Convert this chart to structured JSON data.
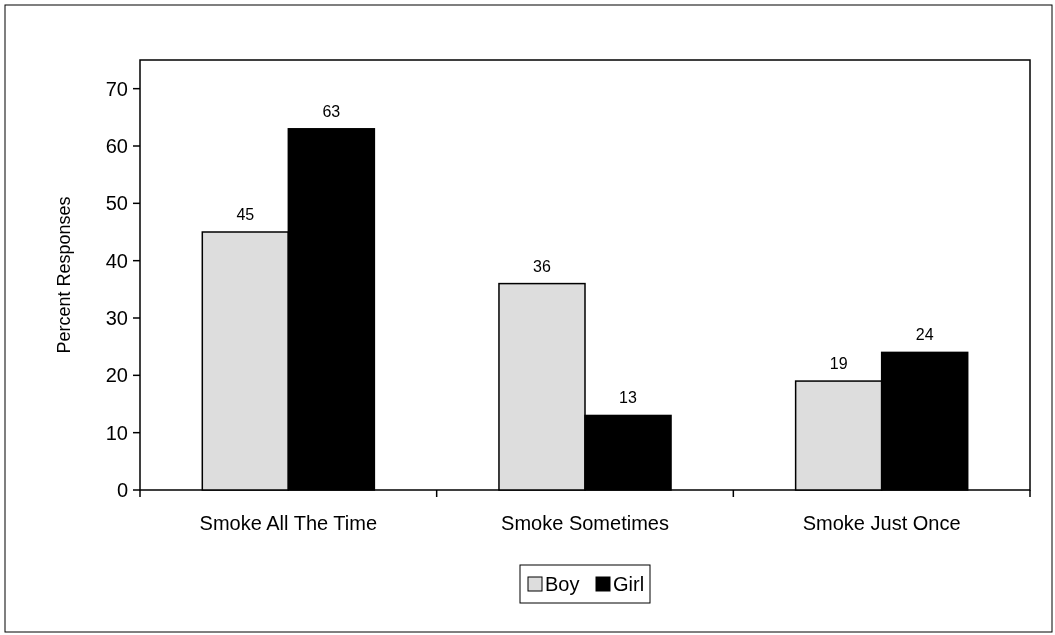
{
  "chart_data": {
    "type": "bar",
    "ylabel": "Percent Responses",
    "categories": [
      "Smoke All The Time",
      "Smoke Sometimes",
      "Smoke Just Once"
    ],
    "series": [
      {
        "name": "Boy",
        "color": "#dddddd",
        "values": [
          45,
          36,
          19
        ]
      },
      {
        "name": "Girl",
        "color": "#000000",
        "values": [
          63,
          13,
          24
        ]
      }
    ],
    "ylim": [
      0,
      75
    ],
    "yticks": [
      0,
      10,
      20,
      30,
      40,
      50,
      60,
      70
    ],
    "data_labels": true,
    "legend": "bottom",
    "grid": false
  }
}
